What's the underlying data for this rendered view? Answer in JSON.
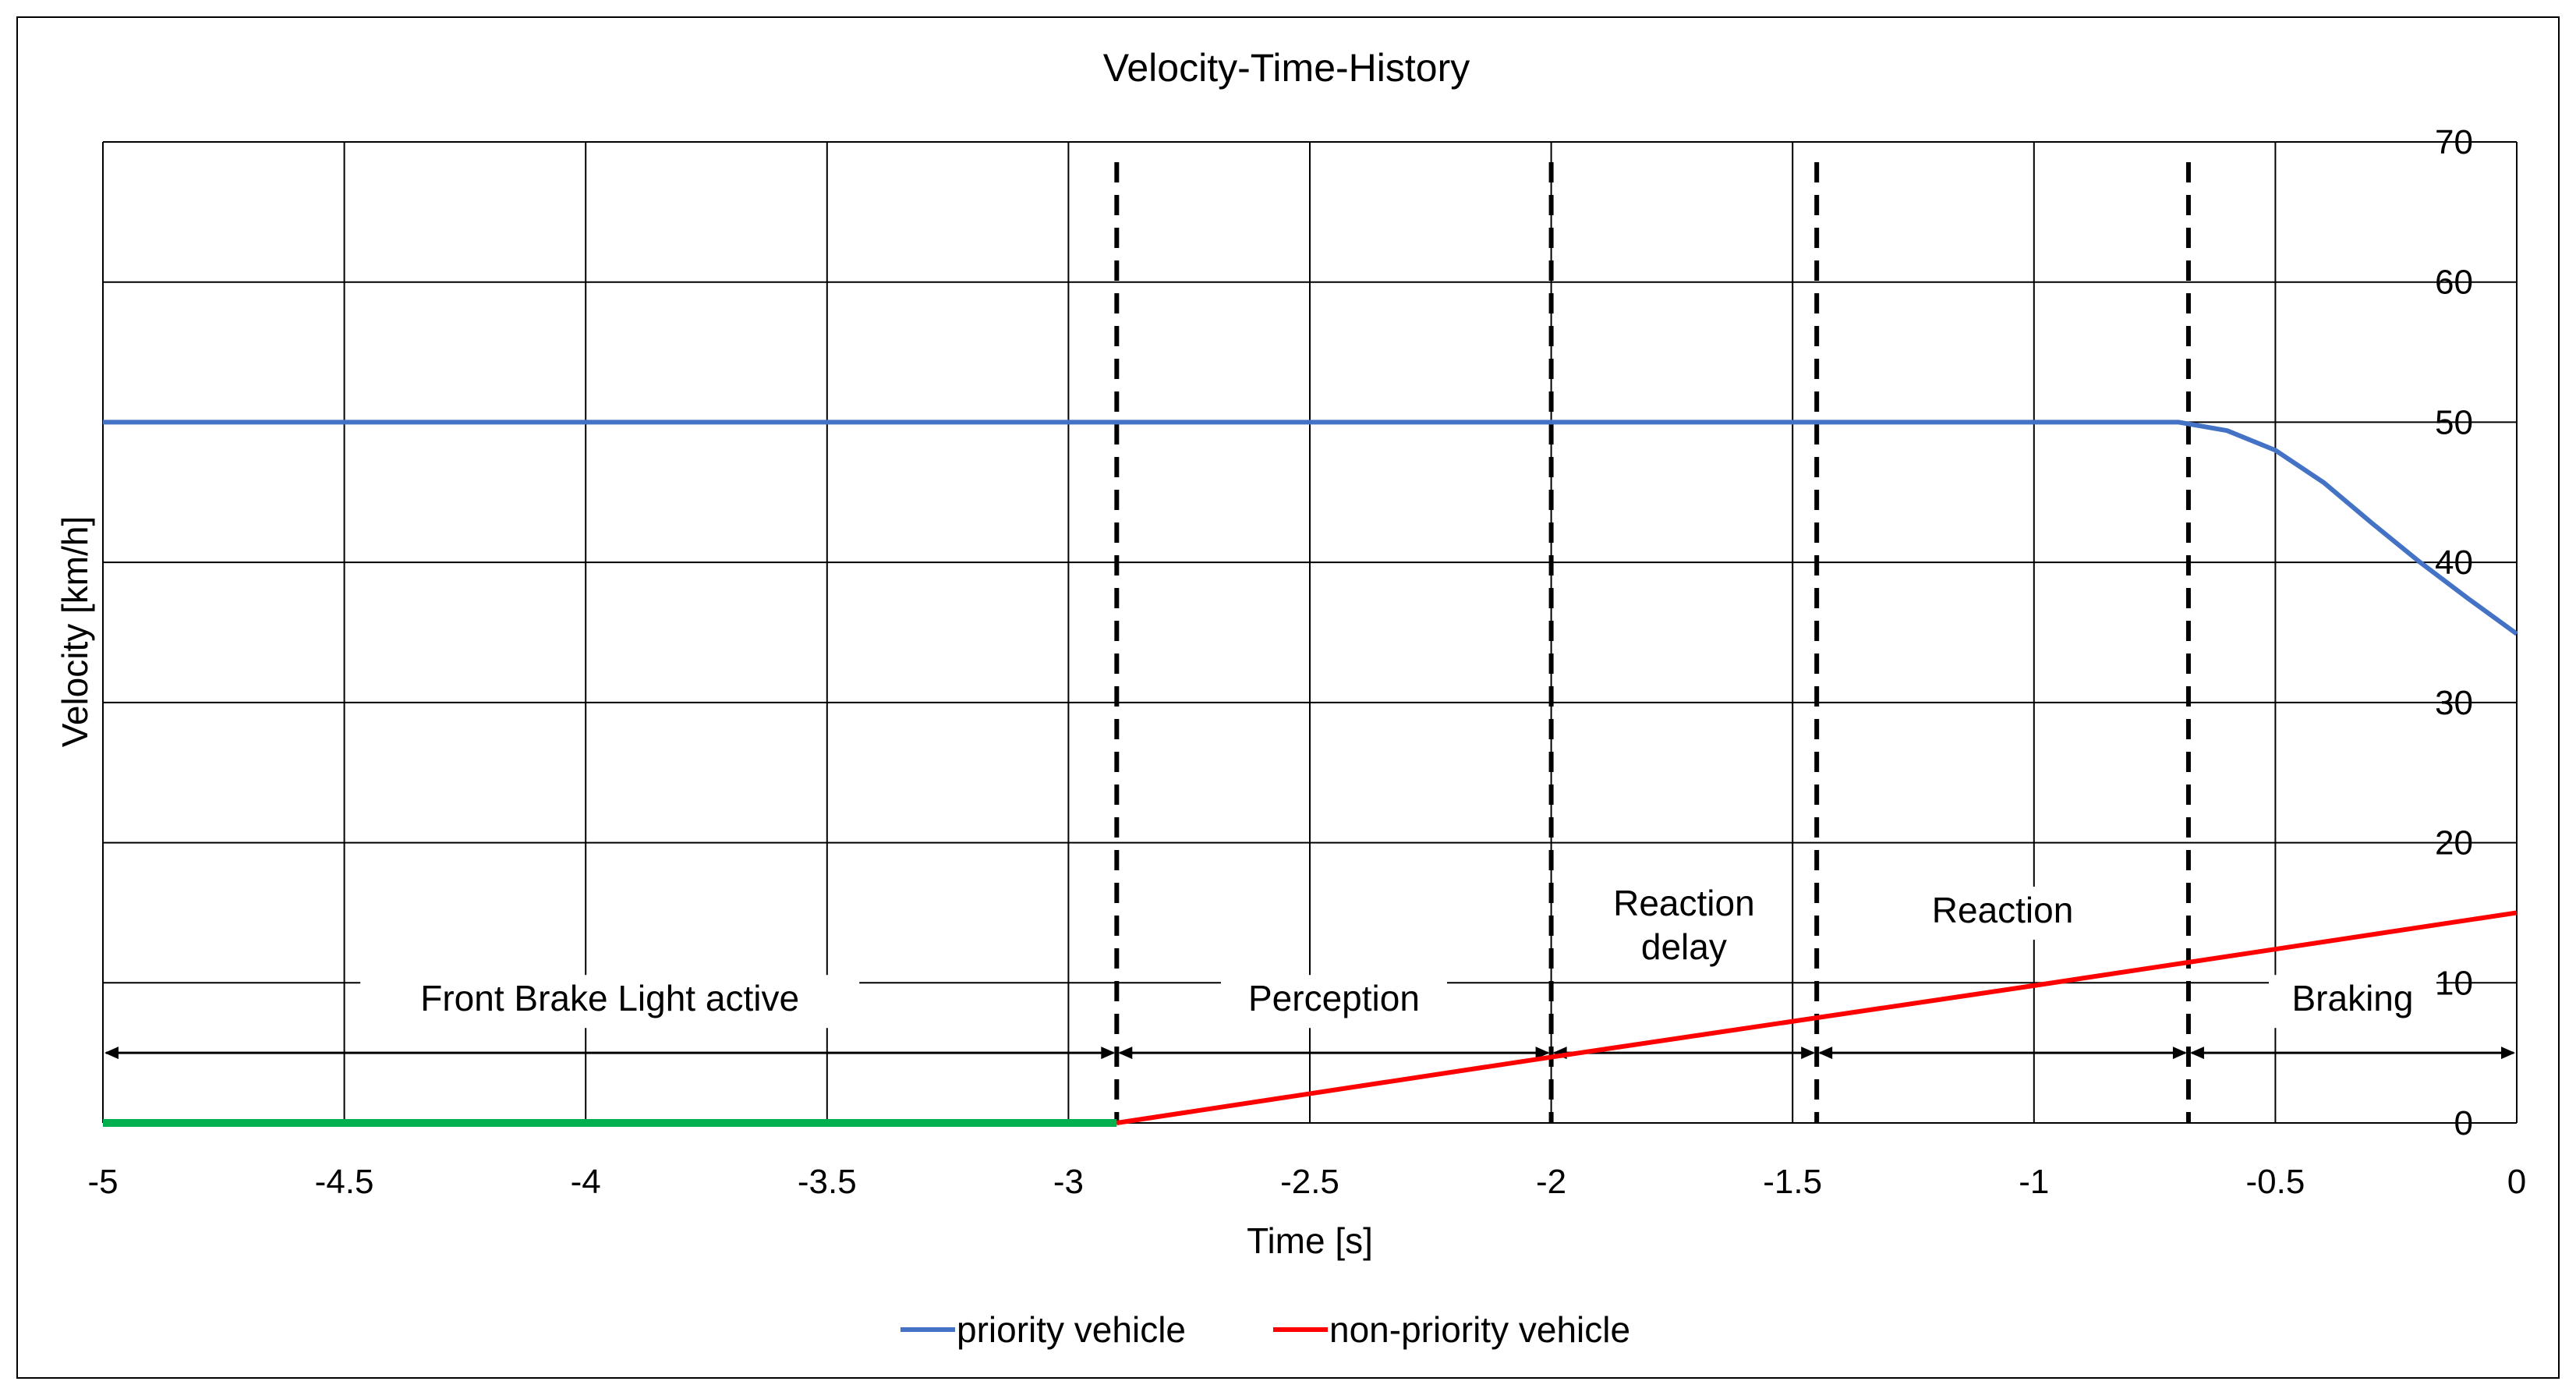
{
  "chart_data": {
    "type": "line",
    "title": "Velocity-Time-History",
    "xlabel": "Time [s]",
    "ylabel": "Velocity [km/h]",
    "xlim": [
      -5,
      0
    ],
    "ylim": [
      0,
      70
    ],
    "x_ticks": [
      -5,
      -4.5,
      -4,
      -3.5,
      -3,
      -2.5,
      -2,
      -1.5,
      -1,
      -0.5,
      0
    ],
    "x_tick_labels": [
      "-5",
      "-4.5",
      "-4",
      "-3.5",
      "-3",
      "-2.5",
      "-2",
      "-1.5",
      "-1",
      "-0.5",
      "0"
    ],
    "y_ticks": [
      0,
      10,
      20,
      30,
      40,
      50,
      60,
      70
    ],
    "y_tick_labels": [
      "0",
      "10",
      "20",
      "30",
      "40",
      "50",
      "60",
      "70"
    ],
    "grid": true,
    "series": [
      {
        "name": "priority vehicle",
        "color": "#4472C4",
        "x": [
          -5,
          -0.7,
          -0.6,
          -0.5,
          -0.4,
          -0.3,
          -0.2,
          -0.1,
          0
        ],
        "y": [
          50,
          50,
          49.4,
          48,
          45.7,
          42.8,
          40,
          37.4,
          34.9
        ]
      },
      {
        "name": "non-priority vehicle",
        "color": "#FF0000",
        "x": [
          -2.9,
          -2,
          -1,
          0
        ],
        "y": [
          0,
          4.7,
          9.8,
          15
        ]
      },
      {
        "name": "front brake light",
        "color": "#00B050",
        "x": [
          -5,
          -2.9
        ],
        "y": [
          0,
          0
        ]
      }
    ],
    "phase_boundaries": [
      -2.9,
      -2,
      -1.45,
      -0.68
    ],
    "phases": [
      {
        "label": "Front Brake Light active",
        "from": -5,
        "to": -2.9
      },
      {
        "label": "Perception",
        "from": -2.9,
        "to": -2
      },
      {
        "label": "Reaction delay",
        "from": -2,
        "to": -1.45
      },
      {
        "label": "Reaction",
        "from": -1.45,
        "to": -0.68
      },
      {
        "label": "Braking",
        "from": -0.68,
        "to": 0
      }
    ],
    "legend": [
      {
        "label": "priority vehicle",
        "color": "#4472C4"
      },
      {
        "label": "non-priority vehicle",
        "color": "#FF0000"
      }
    ],
    "legend_position": "bottom"
  }
}
